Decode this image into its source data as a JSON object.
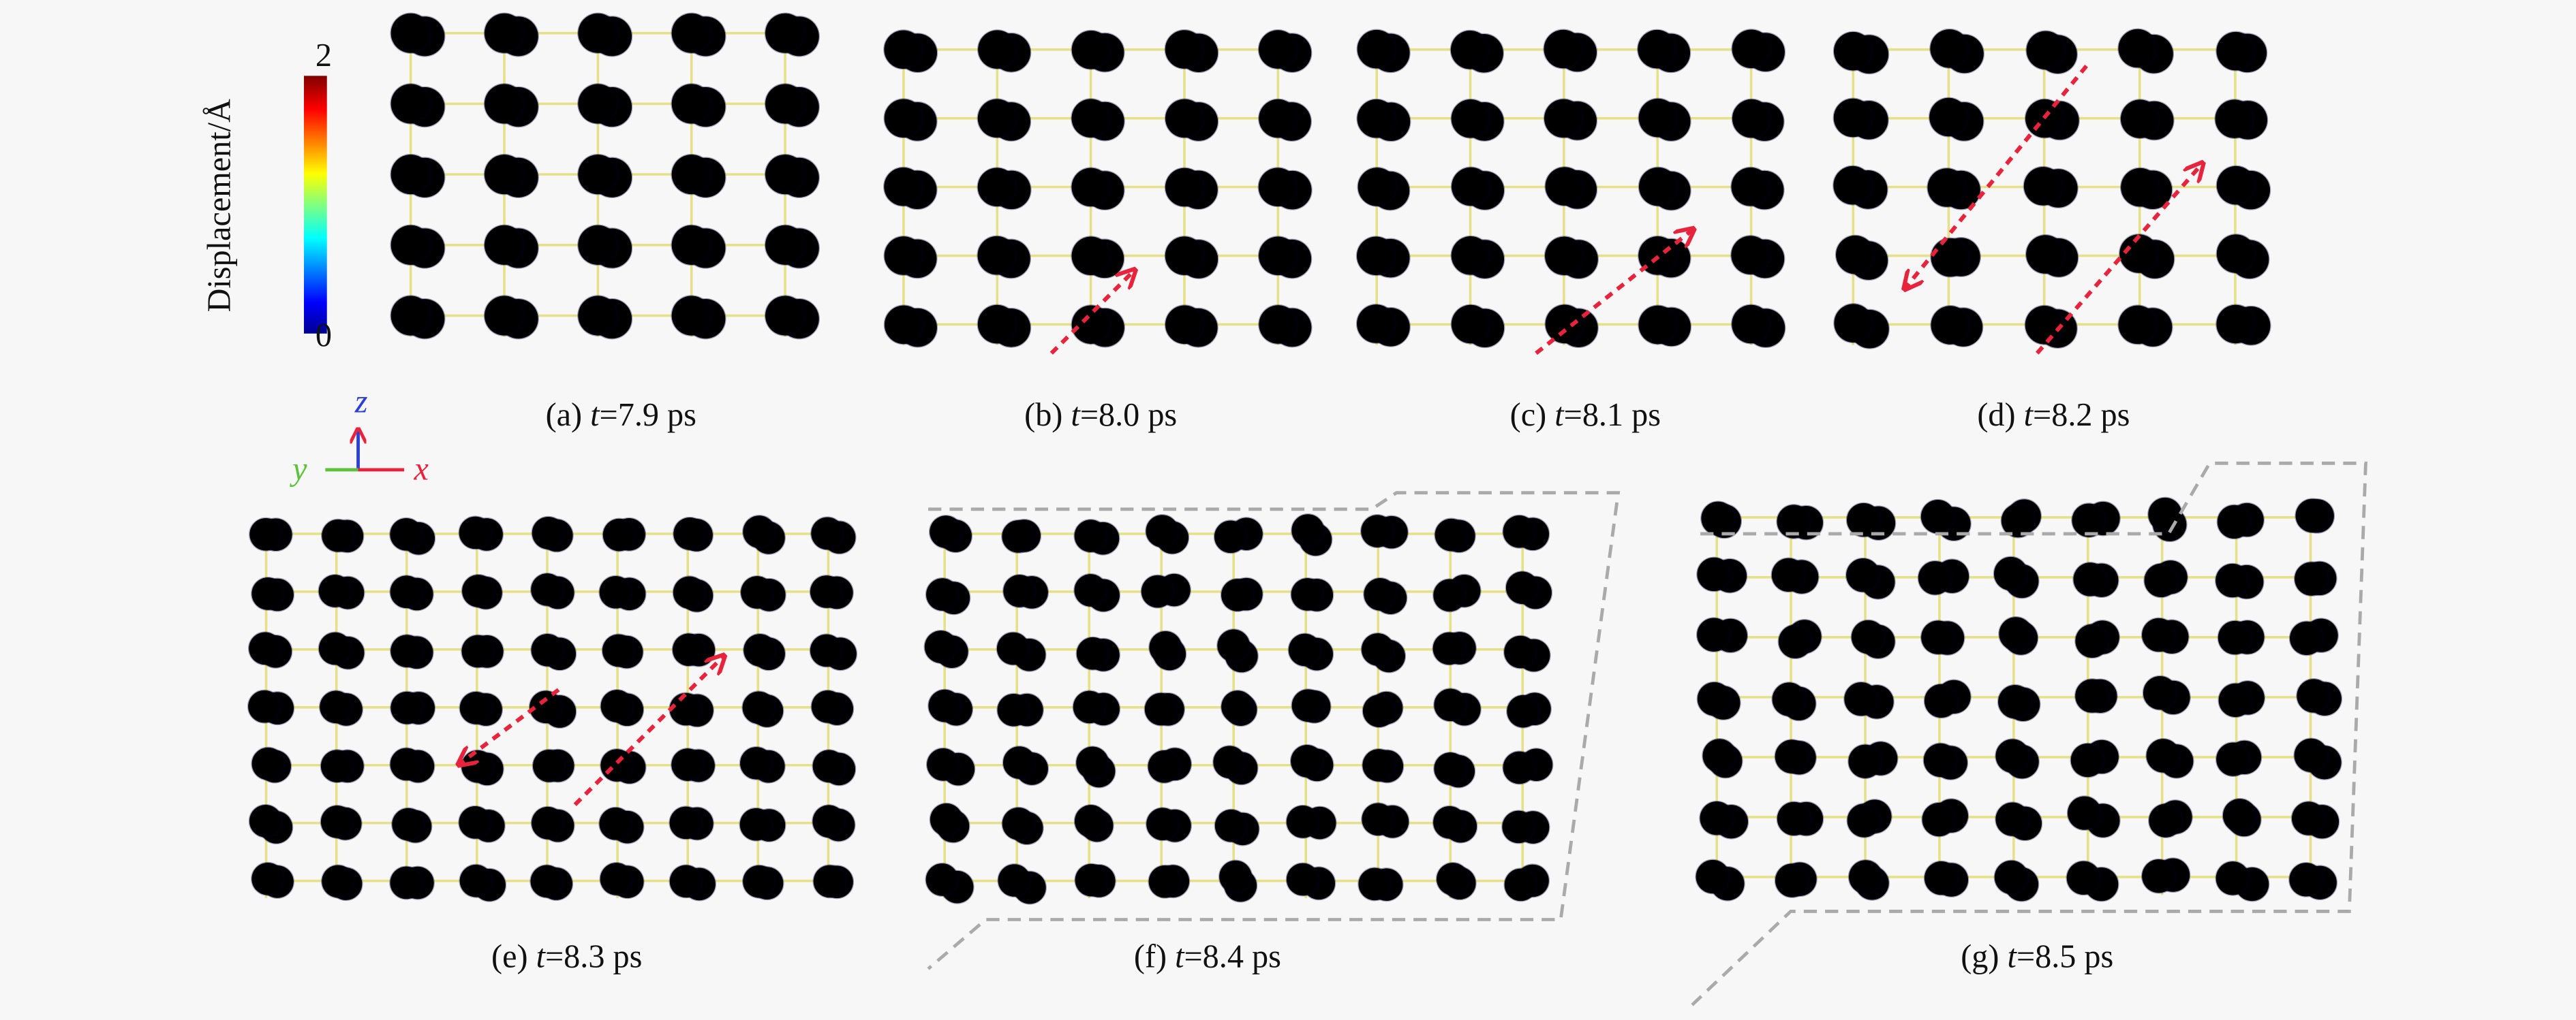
{
  "colorbar": {
    "label": "Displacement/Å",
    "max": "2",
    "min": "0"
  },
  "axes": {
    "z": "z",
    "y": "y",
    "x": "x"
  },
  "panels": [
    {
      "label": "(a)",
      "variable": "t",
      "rest": "=7.9 ps"
    },
    {
      "label": "(b)",
      "variable": "t",
      "rest": "=8.0 ps"
    },
    {
      "label": "(c)",
      "variable": "t",
      "rest": "=8.1 ps"
    },
    {
      "label": "(d)",
      "variable": "t",
      "rest": "=8.2 ps"
    },
    {
      "label": "(e)",
      "variable": "t",
      "rest": "=8.3 ps"
    },
    {
      "label": "(f)",
      "variable": "t",
      "rest": "=8.4 ps"
    },
    {
      "label": "(g)",
      "variable": "t",
      "rest": "=8.5 ps"
    }
  ]
}
